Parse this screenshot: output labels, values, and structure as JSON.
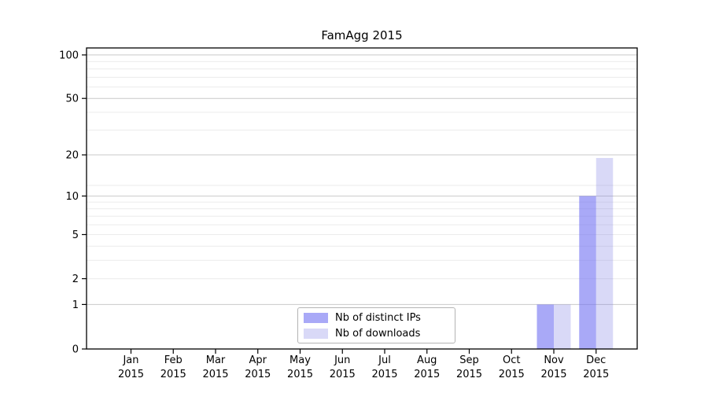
{
  "title": "FamAgg 2015",
  "chart_data": {
    "type": "bar",
    "title": "FamAgg 2015",
    "categories": [
      "Jan 2015",
      "Feb 2015",
      "Mar 2015",
      "Apr 2015",
      "May 2015",
      "Jun 2015",
      "Jul 2015",
      "Aug 2015",
      "Sep 2015",
      "Oct 2015",
      "Nov 2015",
      "Dec 2015"
    ],
    "series": [
      {
        "name": "Nb of distinct IPs",
        "color_on_white": "#a9a9f7",
        "fill": "rgba(112,112,242,0.6)",
        "values": [
          0,
          0,
          0,
          0,
          0,
          0,
          0,
          0,
          0,
          0,
          1,
          10
        ]
      },
      {
        "name": "Nb of downloads",
        "color_on_white": "#d9d9f7",
        "fill": "rgba(128,128,228,0.3)",
        "values": [
          0,
          0,
          0,
          0,
          0,
          0,
          0,
          0,
          0,
          0,
          1,
          19
        ]
      }
    ],
    "xlabel": "",
    "ylabel": "",
    "y_axis": {
      "scale": "log(1+x)",
      "tick_values": [
        0,
        1,
        2,
        5,
        10,
        20,
        50,
        100
      ],
      "ylim": [
        0,
        112
      ]
    },
    "gridlines": {
      "major_values": [
        1,
        10,
        20,
        50,
        100
      ],
      "minor_values": [
        2,
        3,
        4,
        5,
        6,
        7,
        8,
        9,
        12,
        30,
        40,
        60,
        70,
        80,
        90
      ],
      "major_color": "#c9c9c9",
      "minor_color": "#ebebeb"
    },
    "legend": {
      "position": "lower center",
      "entries": [
        "Nb of distinct IPs",
        "Nb of downloads"
      ]
    },
    "axis_color": "#000000",
    "background_color": "#ffffff"
  }
}
